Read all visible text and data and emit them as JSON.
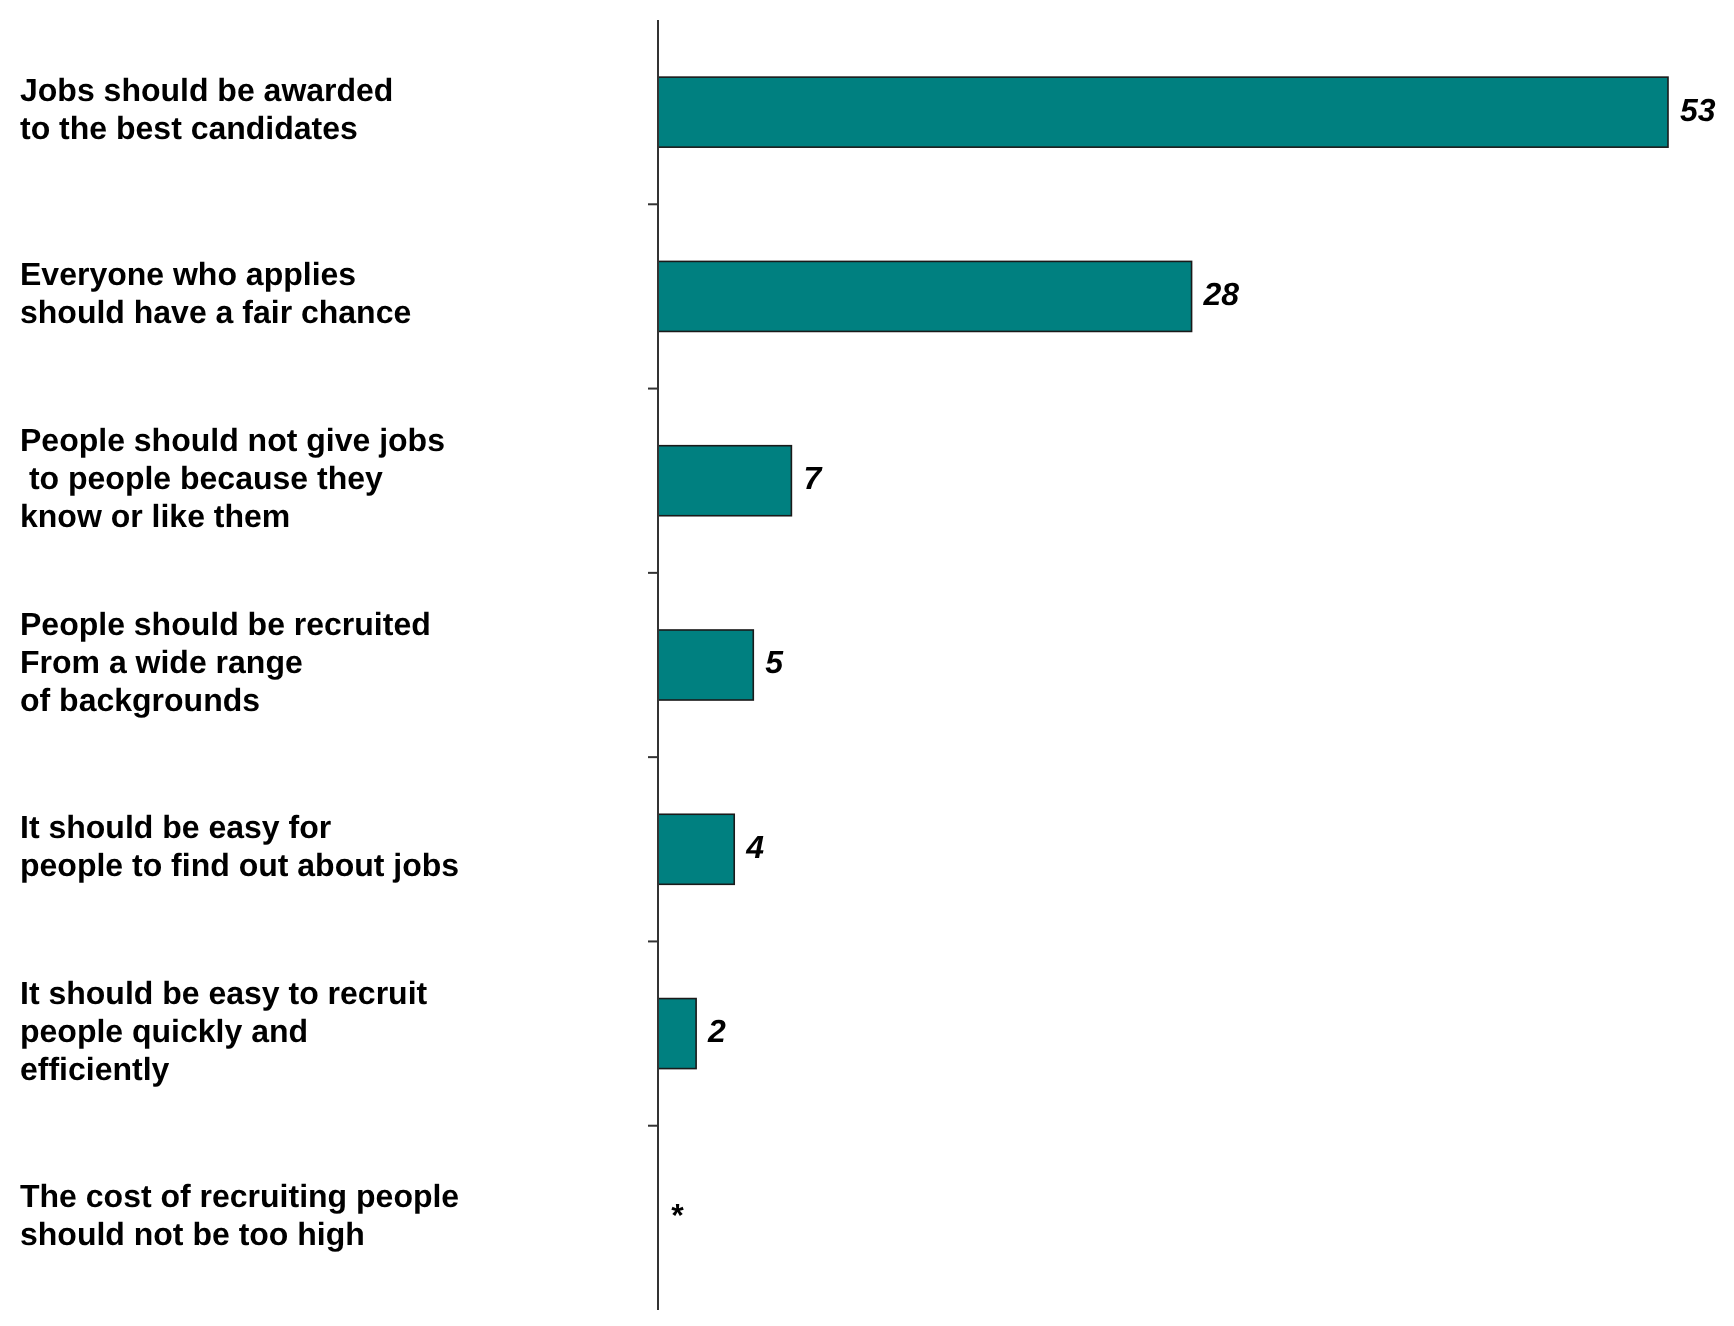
{
  "chart_data": {
    "type": "bar",
    "orientation": "horizontal",
    "categories": [
      "Jobs should be awarded\nto the best candidates",
      "Everyone who applies\nshould have a fair chance",
      "People should not give jobs\n to people because they\nknow or like them",
      "People should be recruited\nFrom a wide range\nof backgrounds",
      "It should be easy for\npeople to find out about jobs",
      "It should be easy to recruit\npeople quickly and\nefficiently",
      "The cost of recruiting people\nshould not be too high"
    ],
    "values": [
      53,
      28,
      7,
      5,
      4,
      2,
      null
    ],
    "value_labels": [
      "53",
      "28",
      "7",
      "5",
      "4",
      "2",
      "*"
    ],
    "color": "#008080"
  }
}
